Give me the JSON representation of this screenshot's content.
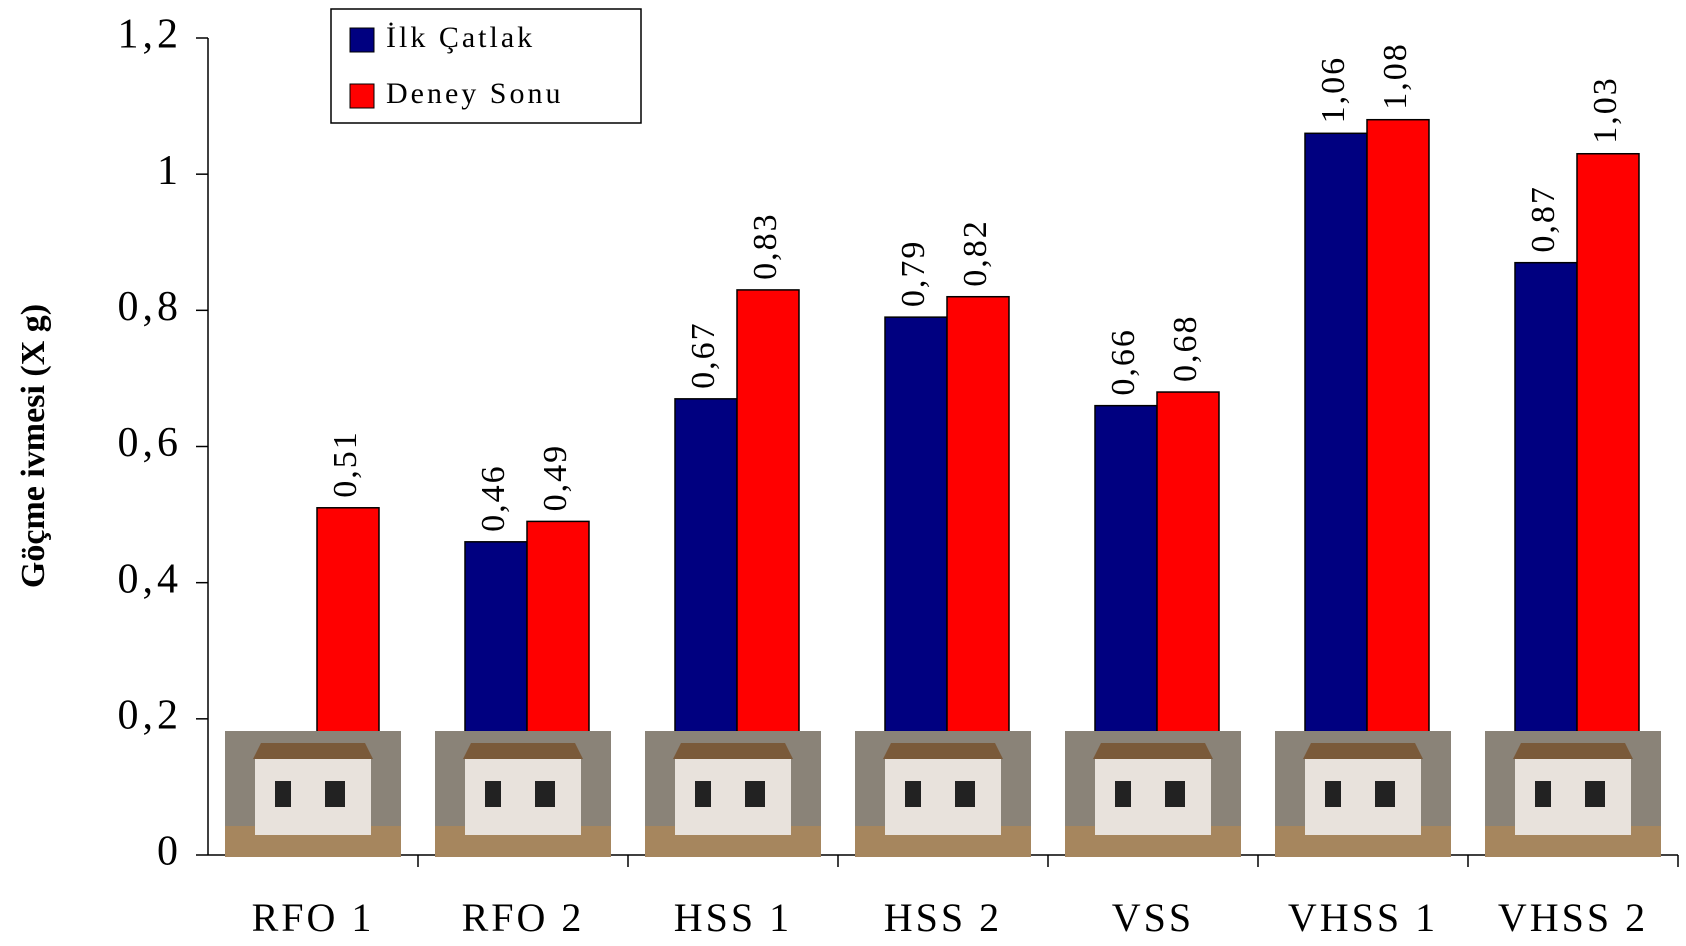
{
  "chart_data": {
    "type": "bar",
    "y_label": "Göçme ivmesi (X g)",
    "categories": [
      "RFO 1",
      "RFO 2",
      "HSS 1",
      "HSS 2",
      "VSS",
      "VHSS 1",
      "VHSS 2"
    ],
    "series": [
      {
        "name": "İlk Çatlak",
        "color": "#000080",
        "values": [
          null,
          0.46,
          0.67,
          0.79,
          0.66,
          1.06,
          0.87
        ],
        "value_labels": [
          null,
          "0,46",
          "0,67",
          "0,79",
          "0,66",
          "1,06",
          "0,87"
        ]
      },
      {
        "name": "Deney Sonu",
        "color": "#ff0000",
        "values": [
          0.51,
          0.49,
          0.83,
          0.82,
          0.68,
          1.08,
          1.03
        ],
        "value_labels": [
          "0,51",
          "0,49",
          "0,83",
          "0,82",
          "0,68",
          "1,08",
          "1,03"
        ]
      }
    ],
    "ylim": [
      0,
      1.2
    ],
    "yticks": [
      0,
      {
        "value": 0.2,
        "label": "0,2"
      },
      {
        "value": 0.4,
        "label": "0,4"
      },
      {
        "value": 0.6,
        "label": "0,6"
      },
      {
        "value": 0.8,
        "label": "0,8"
      },
      1,
      {
        "value": 1.2,
        "label": "1,2"
      }
    ],
    "legend": "top-left"
  }
}
